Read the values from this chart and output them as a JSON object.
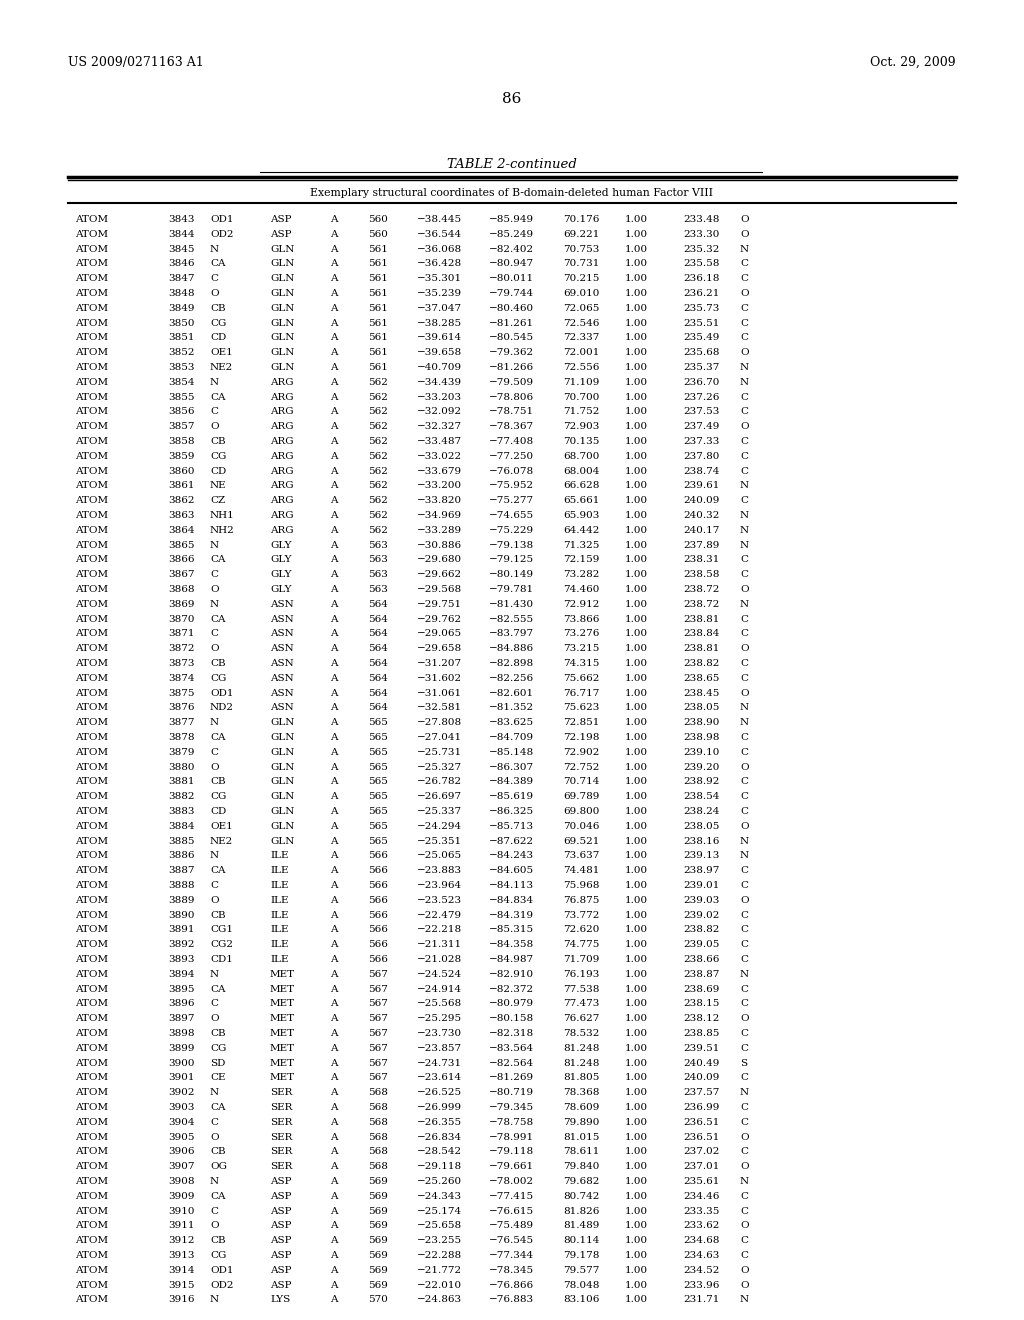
{
  "header_left": "US 2009/0271163 A1",
  "header_right": "Oct. 29, 2009",
  "page_number": "86",
  "table_title": "TABLE 2-continued",
  "table_subtitle": "Exemplary structural coordinates of B-domain-deleted human Factor VIII",
  "rows": [
    [
      "ATOM",
      "3843",
      "OD1",
      "ASP",
      "A",
      "560",
      "−38.445",
      "−85.949",
      "70.176",
      "1.00",
      "233.48",
      "O"
    ],
    [
      "ATOM",
      "3844",
      "OD2",
      "ASP",
      "A",
      "560",
      "−36.544",
      "−85.249",
      "69.221",
      "1.00",
      "233.30",
      "O"
    ],
    [
      "ATOM",
      "3845",
      "N",
      "GLN",
      "A",
      "561",
      "−36.068",
      "−82.402",
      "70.753",
      "1.00",
      "235.32",
      "N"
    ],
    [
      "ATOM",
      "3846",
      "CA",
      "GLN",
      "A",
      "561",
      "−36.428",
      "−80.947",
      "70.731",
      "1.00",
      "235.58",
      "C"
    ],
    [
      "ATOM",
      "3847",
      "C",
      "GLN",
      "A",
      "561",
      "−35.301",
      "−80.011",
      "70.215",
      "1.00",
      "236.18",
      "C"
    ],
    [
      "ATOM",
      "3848",
      "O",
      "GLN",
      "A",
      "561",
      "−35.239",
      "−79.744",
      "69.010",
      "1.00",
      "236.21",
      "O"
    ],
    [
      "ATOM",
      "3849",
      "CB",
      "GLN",
      "A",
      "561",
      "−37.047",
      "−80.460",
      "72.065",
      "1.00",
      "235.73",
      "C"
    ],
    [
      "ATOM",
      "3850",
      "CG",
      "GLN",
      "A",
      "561",
      "−38.285",
      "−81.261",
      "72.546",
      "1.00",
      "235.51",
      "C"
    ],
    [
      "ATOM",
      "3851",
      "CD",
      "GLN",
      "A",
      "561",
      "−39.614",
      "−80.545",
      "72.337",
      "1.00",
      "235.49",
      "C"
    ],
    [
      "ATOM",
      "3852",
      "OE1",
      "GLN",
      "A",
      "561",
      "−39.658",
      "−79.362",
      "72.001",
      "1.00",
      "235.68",
      "O"
    ],
    [
      "ATOM",
      "3853",
      "NE2",
      "GLN",
      "A",
      "561",
      "−40.709",
      "−81.266",
      "72.556",
      "1.00",
      "235.37",
      "N"
    ],
    [
      "ATOM",
      "3854",
      "N",
      "ARG",
      "A",
      "562",
      "−34.439",
      "−79.509",
      "71.109",
      "1.00",
      "236.70",
      "N"
    ],
    [
      "ATOM",
      "3855",
      "CA",
      "ARG",
      "A",
      "562",
      "−33.203",
      "−78.806",
      "70.700",
      "1.00",
      "237.26",
      "C"
    ],
    [
      "ATOM",
      "3856",
      "C",
      "ARG",
      "A",
      "562",
      "−32.092",
      "−78.751",
      "71.752",
      "1.00",
      "237.53",
      "C"
    ],
    [
      "ATOM",
      "3857",
      "O",
      "ARG",
      "A",
      "562",
      "−32.327",
      "−78.367",
      "72.903",
      "1.00",
      "237.49",
      "O"
    ],
    [
      "ATOM",
      "3858",
      "CB",
      "ARG",
      "A",
      "562",
      "−33.487",
      "−77.408",
      "70.135",
      "1.00",
      "237.33",
      "C"
    ],
    [
      "ATOM",
      "3859",
      "CG",
      "ARG",
      "A",
      "562",
      "−33.022",
      "−77.250",
      "68.700",
      "1.00",
      "237.80",
      "C"
    ],
    [
      "ATOM",
      "3860",
      "CD",
      "ARG",
      "A",
      "562",
      "−33.679",
      "−76.078",
      "68.004",
      "1.00",
      "238.74",
      "C"
    ],
    [
      "ATOM",
      "3861",
      "NE",
      "ARG",
      "A",
      "562",
      "−33.200",
      "−75.952",
      "66.628",
      "1.00",
      "239.61",
      "N"
    ],
    [
      "ATOM",
      "3862",
      "CZ",
      "ARG",
      "A",
      "562",
      "−33.820",
      "−75.277",
      "65.661",
      "1.00",
      "240.09",
      "C"
    ],
    [
      "ATOM",
      "3863",
      "NH1",
      "ARG",
      "A",
      "562",
      "−34.969",
      "−74.655",
      "65.903",
      "1.00",
      "240.32",
      "N"
    ],
    [
      "ATOM",
      "3864",
      "NH2",
      "ARG",
      "A",
      "562",
      "−33.289",
      "−75.229",
      "64.442",
      "1.00",
      "240.17",
      "N"
    ],
    [
      "ATOM",
      "3865",
      "N",
      "GLY",
      "A",
      "563",
      "−30.886",
      "−79.138",
      "71.325",
      "1.00",
      "237.89",
      "N"
    ],
    [
      "ATOM",
      "3866",
      "CA",
      "GLY",
      "A",
      "563",
      "−29.680",
      "−79.125",
      "72.159",
      "1.00",
      "238.31",
      "C"
    ],
    [
      "ATOM",
      "3867",
      "C",
      "GLY",
      "A",
      "563",
      "−29.662",
      "−80.149",
      "73.282",
      "1.00",
      "238.58",
      "C"
    ],
    [
      "ATOM",
      "3868",
      "O",
      "GLY",
      "A",
      "563",
      "−29.568",
      "−79.781",
      "74.460",
      "1.00",
      "238.72",
      "O"
    ],
    [
      "ATOM",
      "3869",
      "N",
      "ASN",
      "A",
      "564",
      "−29.751",
      "−81.430",
      "72.912",
      "1.00",
      "238.72",
      "N"
    ],
    [
      "ATOM",
      "3870",
      "CA",
      "ASN",
      "A",
      "564",
      "−29.762",
      "−82.555",
      "73.866",
      "1.00",
      "238.81",
      "C"
    ],
    [
      "ATOM",
      "3871",
      "C",
      "ASN",
      "A",
      "564",
      "−29.065",
      "−83.797",
      "73.276",
      "1.00",
      "238.84",
      "C"
    ],
    [
      "ATOM",
      "3872",
      "O",
      "ASN",
      "A",
      "564",
      "−29.658",
      "−84.886",
      "73.215",
      "1.00",
      "238.81",
      "O"
    ],
    [
      "ATOM",
      "3873",
      "CB",
      "ASN",
      "A",
      "564",
      "−31.207",
      "−82.898",
      "74.315",
      "1.00",
      "238.82",
      "C"
    ],
    [
      "ATOM",
      "3874",
      "CG",
      "ASN",
      "A",
      "564",
      "−31.602",
      "−82.256",
      "75.662",
      "1.00",
      "238.65",
      "C"
    ],
    [
      "ATOM",
      "3875",
      "OD1",
      "ASN",
      "A",
      "564",
      "−31.061",
      "−82.601",
      "76.717",
      "1.00",
      "238.45",
      "O"
    ],
    [
      "ATOM",
      "3876",
      "ND2",
      "ASN",
      "A",
      "564",
      "−32.581",
      "−81.352",
      "75.623",
      "1.00",
      "238.05",
      "N"
    ],
    [
      "ATOM",
      "3877",
      "N",
      "GLN",
      "A",
      "565",
      "−27.808",
      "−83.625",
      "72.851",
      "1.00",
      "238.90",
      "N"
    ],
    [
      "ATOM",
      "3878",
      "CA",
      "GLN",
      "A",
      "565",
      "−27.041",
      "−84.709",
      "72.198",
      "1.00",
      "238.98",
      "C"
    ],
    [
      "ATOM",
      "3879",
      "C",
      "GLN",
      "A",
      "565",
      "−25.731",
      "−85.148",
      "72.902",
      "1.00",
      "239.10",
      "C"
    ],
    [
      "ATOM",
      "3880",
      "O",
      "GLN",
      "A",
      "565",
      "−25.327",
      "−86.307",
      "72.752",
      "1.00",
      "239.20",
      "O"
    ],
    [
      "ATOM",
      "3881",
      "CB",
      "GLN",
      "A",
      "565",
      "−26.782",
      "−84.389",
      "70.714",
      "1.00",
      "238.92",
      "C"
    ],
    [
      "ATOM",
      "3882",
      "CG",
      "GLN",
      "A",
      "565",
      "−26.697",
      "−85.619",
      "69.789",
      "1.00",
      "238.54",
      "C"
    ],
    [
      "ATOM",
      "3883",
      "CD",
      "GLN",
      "A",
      "565",
      "−25.337",
      "−86.325",
      "69.800",
      "1.00",
      "238.24",
      "C"
    ],
    [
      "ATOM",
      "3884",
      "OE1",
      "GLN",
      "A",
      "565",
      "−24.294",
      "−85.713",
      "70.046",
      "1.00",
      "238.05",
      "O"
    ],
    [
      "ATOM",
      "3885",
      "NE2",
      "GLN",
      "A",
      "565",
      "−25.351",
      "−87.622",
      "69.521",
      "1.00",
      "238.16",
      "N"
    ],
    [
      "ATOM",
      "3886",
      "N",
      "ILE",
      "A",
      "566",
      "−25.065",
      "−84.243",
      "73.637",
      "1.00",
      "239.13",
      "N"
    ],
    [
      "ATOM",
      "3887",
      "CA",
      "ILE",
      "A",
      "566",
      "−23.883",
      "−84.605",
      "74.481",
      "1.00",
      "238.97",
      "C"
    ],
    [
      "ATOM",
      "3888",
      "C",
      "ILE",
      "A",
      "566",
      "−23.964",
      "−84.113",
      "75.968",
      "1.00",
      "239.01",
      "C"
    ],
    [
      "ATOM",
      "3889",
      "O",
      "ILE",
      "A",
      "566",
      "−23.523",
      "−84.834",
      "76.875",
      "1.00",
      "239.03",
      "O"
    ],
    [
      "ATOM",
      "3890",
      "CB",
      "ILE",
      "A",
      "566",
      "−22.479",
      "−84.319",
      "73.772",
      "1.00",
      "239.02",
      "C"
    ],
    [
      "ATOM",
      "3891",
      "CG1",
      "ILE",
      "A",
      "566",
      "−22.218",
      "−85.315",
      "72.620",
      "1.00",
      "238.82",
      "C"
    ],
    [
      "ATOM",
      "3892",
      "CG2",
      "ILE",
      "A",
      "566",
      "−21.311",
      "−84.358",
      "74.775",
      "1.00",
      "239.05",
      "C"
    ],
    [
      "ATOM",
      "3893",
      "CD1",
      "ILE",
      "A",
      "566",
      "−21.028",
      "−84.987",
      "71.709",
      "1.00",
      "238.66",
      "C"
    ],
    [
      "ATOM",
      "3894",
      "N",
      "MET",
      "A",
      "567",
      "−24.524",
      "−82.910",
      "76.193",
      "1.00",
      "238.87",
      "N"
    ],
    [
      "ATOM",
      "3895",
      "CA",
      "MET",
      "A",
      "567",
      "−24.914",
      "−82.372",
      "77.538",
      "1.00",
      "238.69",
      "C"
    ],
    [
      "ATOM",
      "3896",
      "C",
      "MET",
      "A",
      "567",
      "−25.568",
      "−80.979",
      "77.473",
      "1.00",
      "238.15",
      "C"
    ],
    [
      "ATOM",
      "3897",
      "O",
      "MET",
      "A",
      "567",
      "−25.295",
      "−80.158",
      "76.627",
      "1.00",
      "238.12",
      "O"
    ],
    [
      "ATOM",
      "3898",
      "CB",
      "MET",
      "A",
      "567",
      "−23.730",
      "−82.318",
      "78.532",
      "1.00",
      "238.85",
      "C"
    ],
    [
      "ATOM",
      "3899",
      "CG",
      "MET",
      "A",
      "567",
      "−23.857",
      "−83.564",
      "81.248",
      "1.00",
      "239.51",
      "C"
    ],
    [
      "ATOM",
      "3900",
      "SD",
      "MET",
      "A",
      "567",
      "−24.731",
      "−82.564",
      "81.248",
      "1.00",
      "240.49",
      "S"
    ],
    [
      "ATOM",
      "3901",
      "CE",
      "MET",
      "A",
      "567",
      "−23.614",
      "−81.269",
      "81.805",
      "1.00",
      "240.09",
      "C"
    ],
    [
      "ATOM",
      "3902",
      "N",
      "SER",
      "A",
      "568",
      "−26.525",
      "−80.719",
      "78.368",
      "1.00",
      "237.57",
      "N"
    ],
    [
      "ATOM",
      "3903",
      "CA",
      "SER",
      "A",
      "568",
      "−26.999",
      "−79.345",
      "78.609",
      "1.00",
      "236.99",
      "C"
    ],
    [
      "ATOM",
      "3904",
      "C",
      "SER",
      "A",
      "568",
      "−26.355",
      "−78.758",
      "79.890",
      "1.00",
      "236.51",
      "C"
    ],
    [
      "ATOM",
      "3905",
      "O",
      "SER",
      "A",
      "568",
      "−26.834",
      "−78.991",
      "81.015",
      "1.00",
      "236.51",
      "O"
    ],
    [
      "ATOM",
      "3906",
      "CB",
      "SER",
      "A",
      "568",
      "−28.542",
      "−79.118",
      "78.611",
      "1.00",
      "237.02",
      "C"
    ],
    [
      "ATOM",
      "3907",
      "OG",
      "SER",
      "A",
      "568",
      "−29.118",
      "−79.661",
      "79.840",
      "1.00",
      "237.01",
      "O"
    ],
    [
      "ATOM",
      "3908",
      "N",
      "ASP",
      "A",
      "569",
      "−25.260",
      "−78.002",
      "79.682",
      "1.00",
      "235.61",
      "N"
    ],
    [
      "ATOM",
      "3909",
      "CA",
      "ASP",
      "A",
      "569",
      "−24.343",
      "−77.415",
      "80.742",
      "1.00",
      "234.46",
      "C"
    ],
    [
      "ATOM",
      "3910",
      "C",
      "ASP",
      "A",
      "569",
      "−25.174",
      "−76.615",
      "81.826",
      "1.00",
      "233.35",
      "C"
    ],
    [
      "ATOM",
      "3911",
      "O",
      "ASP",
      "A",
      "569",
      "−25.658",
      "−75.489",
      "81.489",
      "1.00",
      "233.62",
      "O"
    ],
    [
      "ATOM",
      "3912",
      "CB",
      "ASP",
      "A",
      "569",
      "−23.255",
      "−76.545",
      "80.114",
      "1.00",
      "234.68",
      "C"
    ],
    [
      "ATOM",
      "3913",
      "CG",
      "ASP",
      "A",
      "569",
      "−22.288",
      "−77.344",
      "79.178",
      "1.00",
      "234.63",
      "C"
    ],
    [
      "ATOM",
      "3914",
      "OD1",
      "ASP",
      "A",
      "569",
      "−21.772",
      "−78.345",
      "79.577",
      "1.00",
      "234.52",
      "O"
    ],
    [
      "ATOM",
      "3915",
      "OD2",
      "ASP",
      "A",
      "569",
      "−22.010",
      "−76.866",
      "78.048",
      "1.00",
      "233.96",
      "O"
    ],
    [
      "ATOM",
      "3916",
      "N",
      "LYS",
      "A",
      "570",
      "−24.863",
      "−76.883",
      "83.106",
      "1.00",
      "231.71",
      "N"
    ]
  ],
  "background_color": "#ffffff",
  "text_color": "#000000",
  "font_size": 7.5,
  "header_font_size": 9.0,
  "page_font_size": 11.0,
  "title_font_size": 9.5
}
